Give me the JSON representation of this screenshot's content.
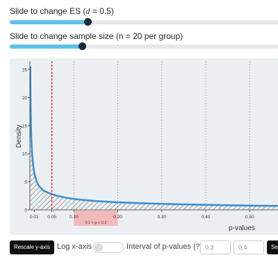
{
  "es_slider": {
    "label_prefix": "Slide to change ES (",
    "label_symbol": "d",
    "label_suffix": " = 0.5)",
    "value": 0.5,
    "fraction": 0.28
  },
  "n_slider": {
    "label": "Slide to change sample size (n = 20 per group)",
    "value": 20,
    "fraction": 0.26
  },
  "chart_data": {
    "type": "area",
    "xlabel": "p-values",
    "ylabel": "Density",
    "xlim": [
      0,
      0.58
    ],
    "ylim": [
      0,
      26
    ],
    "x_ticks": [
      "0.01",
      "0.05",
      "0.10",
      "0.20",
      "0.30",
      "0.40",
      "0.50"
    ],
    "x_tick_values": [
      0.01,
      0.05,
      0.1,
      0.2,
      0.3,
      0.4,
      0.5
    ],
    "y_ticks": [
      "0",
      "5",
      "10",
      "15",
      "20",
      "25"
    ],
    "y_tick_values": [
      0,
      5,
      10,
      15,
      20,
      25
    ],
    "gridlines_x": [
      0.1,
      0.2,
      0.3,
      0.4,
      0.5
    ],
    "alpha_line": 0.05,
    "interval": {
      "from": 0.1,
      "to": 0.2,
      "label": "0.1 < p < 0.2"
    },
    "series": [
      {
        "x": [
          0.0008,
          0.001,
          0.0015,
          0.002,
          0.003,
          0.005,
          0.008,
          0.01,
          0.015,
          0.02,
          0.03,
          0.04,
          0.05,
          0.06,
          0.08,
          0.1,
          0.12,
          0.15,
          0.2,
          0.25,
          0.3,
          0.35,
          0.4,
          0.45,
          0.5,
          0.55,
          0.58
        ],
        "y": [
          25.5,
          24.0,
          19.5,
          16.5,
          13.2,
          10.0,
          7.6,
          6.6,
          5.1,
          4.3,
          3.5,
          3.1,
          2.8,
          2.55,
          2.2,
          1.95,
          1.78,
          1.58,
          1.35,
          1.2,
          1.08,
          0.98,
          0.9,
          0.83,
          0.77,
          0.72,
          0.69
        ]
      }
    ],
    "colors": {
      "line": "#3b8fd1",
      "alpha": "#e0262b",
      "interval": "#f3b9b9"
    }
  },
  "controls": {
    "rescale_label": "Rescale y-axis",
    "log_label": "Log x-axis",
    "log_on": false,
    "interval_label": "Interval of p-values (?)",
    "from_value": "0.3",
    "to_value": "0.4",
    "set_label": "Se"
  }
}
